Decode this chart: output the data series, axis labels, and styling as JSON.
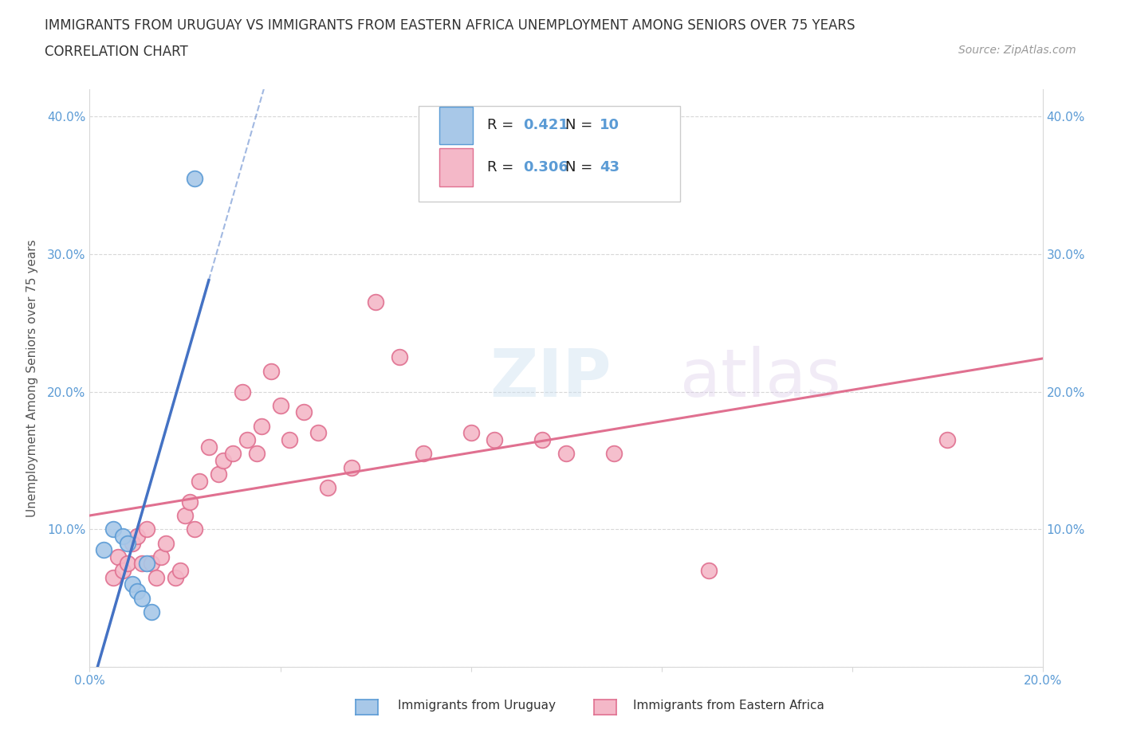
{
  "title_line1": "IMMIGRANTS FROM URUGUAY VS IMMIGRANTS FROM EASTERN AFRICA UNEMPLOYMENT AMONG SENIORS OVER 75 YEARS",
  "title_line2": "CORRELATION CHART",
  "source_text": "Source: ZipAtlas.com",
  "ylabel": "Unemployment Among Seniors over 75 years",
  "xlim": [
    0.0,
    0.2
  ],
  "ylim": [
    0.0,
    0.42
  ],
  "uruguay_color": "#a8c8e8",
  "uruguay_edge_color": "#5b9bd5",
  "eastern_africa_color": "#f4b8c8",
  "eastern_africa_edge_color": "#e07090",
  "trend_uruguay_color": "#4472c4",
  "trend_eastern_africa_color": "#e07090",
  "R_uruguay": 0.421,
  "N_uruguay": 10,
  "R_eastern_africa": 0.306,
  "N_eastern_africa": 43,
  "watermark_zip": "ZIP",
  "watermark_atlas": "atlas",
  "uruguay_scatter_x": [
    0.003,
    0.005,
    0.007,
    0.008,
    0.009,
    0.01,
    0.011,
    0.012,
    0.013,
    0.022
  ],
  "uruguay_scatter_y": [
    0.085,
    0.1,
    0.095,
    0.09,
    0.06,
    0.055,
    0.05,
    0.075,
    0.04,
    0.355
  ],
  "eastern_africa_scatter_x": [
    0.005,
    0.006,
    0.007,
    0.008,
    0.009,
    0.01,
    0.011,
    0.012,
    0.013,
    0.014,
    0.015,
    0.016,
    0.018,
    0.019,
    0.02,
    0.021,
    0.022,
    0.023,
    0.025,
    0.027,
    0.028,
    0.03,
    0.032,
    0.033,
    0.035,
    0.036,
    0.038,
    0.04,
    0.042,
    0.045,
    0.048,
    0.05,
    0.055,
    0.06,
    0.065,
    0.07,
    0.08,
    0.085,
    0.095,
    0.1,
    0.11,
    0.13,
    0.18
  ],
  "eastern_africa_scatter_y": [
    0.065,
    0.08,
    0.07,
    0.075,
    0.09,
    0.095,
    0.075,
    0.1,
    0.075,
    0.065,
    0.08,
    0.09,
    0.065,
    0.07,
    0.11,
    0.12,
    0.1,
    0.135,
    0.16,
    0.14,
    0.15,
    0.155,
    0.2,
    0.165,
    0.155,
    0.175,
    0.215,
    0.19,
    0.165,
    0.185,
    0.17,
    0.13,
    0.145,
    0.265,
    0.225,
    0.155,
    0.17,
    0.165,
    0.165,
    0.155,
    0.155,
    0.07,
    0.165
  ],
  "grid_color": "#d8d8d8",
  "background_color": "#ffffff",
  "title_fontsize": 12,
  "axis_label_fontsize": 11,
  "tick_fontsize": 11,
  "legend_fontsize": 13,
  "tick_color": "#5b9bd5"
}
